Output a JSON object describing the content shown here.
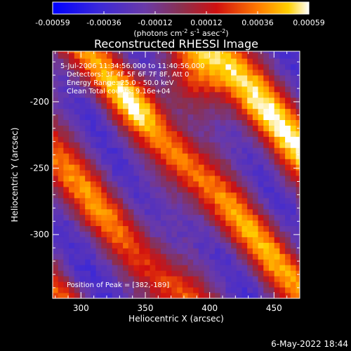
{
  "colorbar": {
    "ticks": [
      "-0.00059",
      "-0.00036",
      "-0.00012",
      "0.00012",
      "0.00036",
      "0.00059"
    ],
    "units_prefix": "(photons cm",
    "units_sup1": "-2",
    "units_mid": " s",
    "units_sup2": "-1",
    "units_mid2": " asec",
    "units_sup3": "-2",
    "units_suffix": ")"
  },
  "chart_data": {
    "type": "heatmap",
    "title": "Reconstructed RHESSI Image",
    "xlabel": "Heliocentric X (arcsec)",
    "ylabel": "Heliocentric Y (arcsec)",
    "xlim": [
      278,
      470
    ],
    "ylim": [
      -348,
      -162
    ],
    "xticks": [
      300,
      350,
      400,
      450
    ],
    "yticks": [
      -200,
      -250,
      -300
    ],
    "colorbar_range": [
      -0.00059,
      0.00059
    ],
    "bright_bands": [
      {
        "peak_x": 385,
        "peak_y": -185
      },
      {
        "peak_x": 330,
        "peak_y": -220
      },
      {
        "peak_x": 290,
        "peak_y": -290
      }
    ],
    "annotations": {
      "time": "5-Jul-2006 11:34:56.000 to 11:40:56.000",
      "detectors": "Detectors: 3F 4F 5F 6F 7F 8F, Att 0",
      "energy": "Energy Range: 25.0 - 50.0 keV",
      "clean": "Clean     Total counts: 9.16e+04",
      "peak": "Position of Peak = [382,-189]"
    }
  },
  "footer": {
    "date": "6-May-2022 18:44"
  }
}
